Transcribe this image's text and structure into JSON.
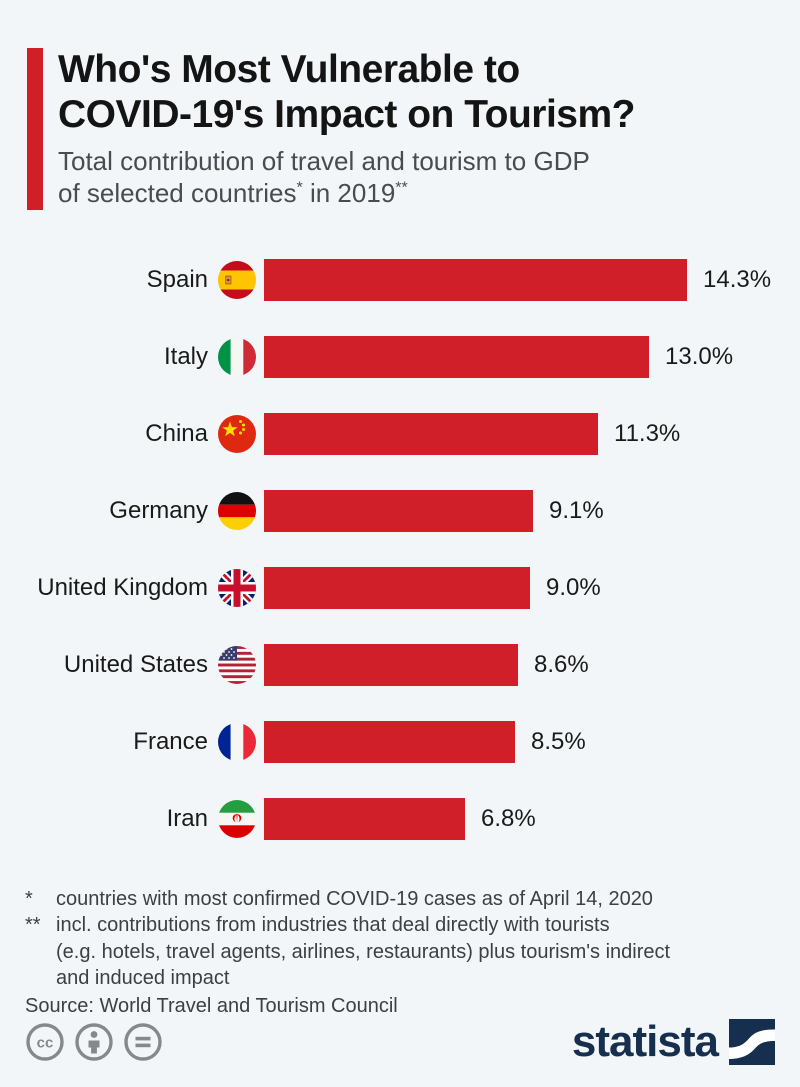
{
  "colors": {
    "background": "#f3f6f9",
    "accent_red": "#d11f2a",
    "bar_red": "#d11f2a",
    "title_text": "#141414",
    "subtitle_text": "#474c50",
    "footnote_text": "#3c4043",
    "brand_navy": "#172f4e",
    "license_gray": "#85898c"
  },
  "header": {
    "title_line1": "Who's Most Vulnerable to",
    "title_line2": "COVID-19's Impact on Tourism?",
    "subtitle_line1": "Total contribution of travel and tourism to GDP",
    "subtitle_line2_text": "of selected countries",
    "subtitle_line2_sup1": "*",
    "subtitle_line2_mid": " in 2019",
    "subtitle_line2_sup2": "**"
  },
  "chart_data": {
    "type": "bar",
    "orientation": "horizontal",
    "title": "Who's Most Vulnerable to COVID-19's Impact on Tourism?",
    "subtitle": "Total contribution of travel and tourism to GDP of selected countries* in 2019**",
    "categories": [
      "Spain",
      "Italy",
      "China",
      "Germany",
      "United Kingdom",
      "United States",
      "France",
      "Iran"
    ],
    "values": [
      14.3,
      13.0,
      11.3,
      9.1,
      9.0,
      8.6,
      8.5,
      6.8
    ],
    "value_labels": [
      "14.3%",
      "13.0%",
      "11.3%",
      "9.1%",
      "9.0%",
      "8.6%",
      "8.5%",
      "6.8%"
    ],
    "flags": [
      "es",
      "it",
      "cn",
      "de",
      "gb",
      "us",
      "fr",
      "ir"
    ],
    "unit": "% of GDP",
    "xlim": [
      0,
      14.3
    ],
    "grid": false,
    "legend": false,
    "bar_color": "#d11f2a"
  },
  "footnotes": [
    {
      "marker": "*",
      "lines": [
        "countries with most confirmed COVID-19 cases as of April 14, 2020"
      ]
    },
    {
      "marker": "**",
      "lines": [
        "incl. contributions from industries that deal directly with tourists",
        "(e.g. hotels, travel agents, airlines, restaurants) plus tourism's indirect",
        "and induced impact"
      ]
    }
  ],
  "footer": {
    "source": "Source: World Travel and Tourism Council",
    "brand": "statista",
    "license_icons": [
      "cc-icon",
      "attribution-icon",
      "no-derivatives-icon"
    ]
  }
}
